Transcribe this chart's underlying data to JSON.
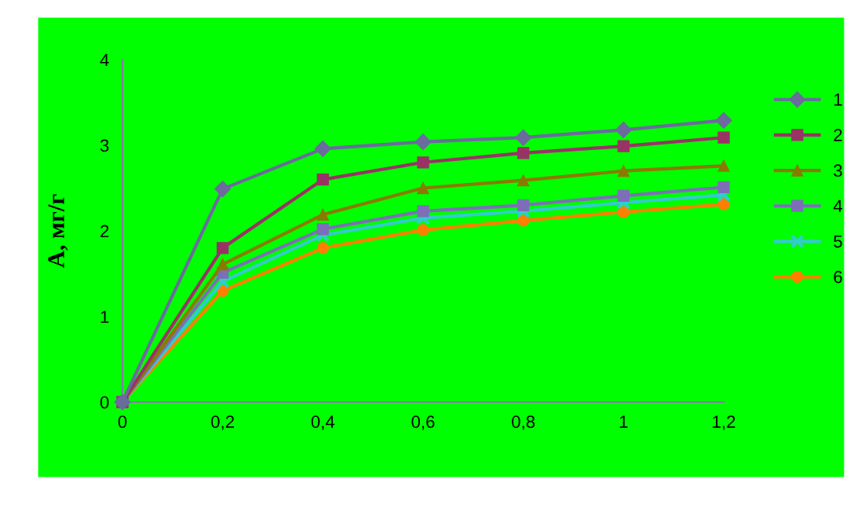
{
  "chart_data": {
    "type": "line",
    "ylabel": "A, мг/г",
    "x": [
      0,
      0.2,
      0.4,
      0.6,
      0.8,
      1,
      1.2
    ],
    "xlim": [
      0,
      1.2
    ],
    "xticks": [
      0,
      {
        "value": 0.2,
        "label": "0,2"
      },
      {
        "value": 0.4,
        "label": "0,4"
      },
      {
        "value": 0.6,
        "label": "0,6"
      },
      {
        "value": 0.8,
        "label": "0,8"
      },
      1,
      {
        "value": 1.2,
        "label": "1,2"
      }
    ],
    "ylim": [
      0,
      4
    ],
    "yticks": [
      0,
      1,
      2,
      3,
      4
    ],
    "grid": false,
    "legend": "right",
    "series": [
      {
        "name": "1",
        "color": "#6b6b9e",
        "marker": "diamond",
        "values": [
          0,
          2.49,
          2.96,
          3.04,
          3.09,
          3.18,
          3.29
        ]
      },
      {
        "name": "2",
        "color": "#993366",
        "marker": "square",
        "values": [
          0,
          1.8,
          2.6,
          2.8,
          2.91,
          2.99,
          3.09
        ]
      },
      {
        "name": "3",
        "color": "#8a7a00",
        "marker": "triangle",
        "values": [
          0,
          1.61,
          2.19,
          2.5,
          2.59,
          2.7,
          2.76
        ]
      },
      {
        "name": "4",
        "color": "#7c6fb8",
        "marker": "square",
        "values": [
          0,
          1.51,
          2.02,
          2.23,
          2.3,
          2.41,
          2.51
        ]
      },
      {
        "name": "5",
        "color": "#33cccc",
        "marker": "cross",
        "values": [
          0,
          1.41,
          1.95,
          2.15,
          2.23,
          2.33,
          2.42
        ]
      },
      {
        "name": "6",
        "color": "#ff8000",
        "marker": "circle",
        "values": [
          0,
          1.3,
          1.8,
          2.01,
          2.12,
          2.22,
          2.31
        ]
      }
    ]
  }
}
